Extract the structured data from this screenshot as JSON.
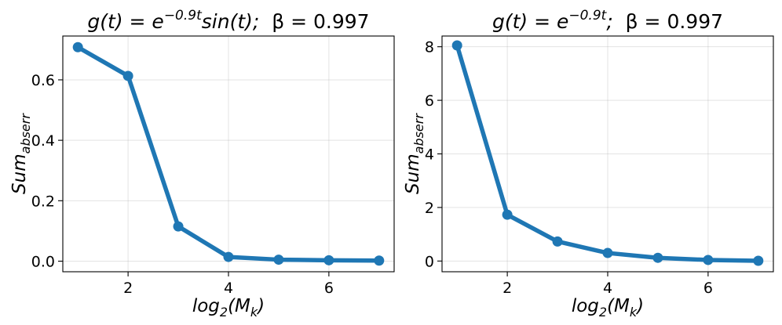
{
  "chart_data": [
    {
      "type": "line",
      "title": {
        "prefix": "g(t) = e",
        "exponent": "−0.9t",
        "suffix": "sin(t);",
        "beta": "β = 0.997"
      },
      "xlabel": {
        "base": "log",
        "sub1": "2",
        "mid": "(M",
        "sub2": "k",
        "end": ")"
      },
      "ylabel": {
        "base": "Sum",
        "sub": "abserr"
      },
      "xlim": [
        0.7,
        7.3
      ],
      "ylim": [
        -0.035,
        0.745
      ],
      "xticks": [
        2,
        4,
        6
      ],
      "xtick_labels": [
        "2",
        "4",
        "6"
      ],
      "yticks": [
        0.0,
        0.2,
        0.4,
        0.6
      ],
      "ytick_labels": [
        "0.0",
        "0.2",
        "0.4",
        "0.6"
      ],
      "grid": true,
      "color": "#1f77b4",
      "x": [
        1,
        2,
        3,
        4,
        5,
        6,
        7
      ],
      "y": [
        0.708,
        0.613,
        0.115,
        0.014,
        0.005,
        0.003,
        0.002
      ]
    },
    {
      "type": "line",
      "title": {
        "prefix": "g(t) = e",
        "exponent": "−0.9t",
        "suffix": ";",
        "beta": "β = 0.997"
      },
      "xlabel": {
        "base": "log",
        "sub1": "2",
        "mid": "(M",
        "sub2": "k",
        "end": ")"
      },
      "ylabel": {
        "base": "Sum",
        "sub": "abserr"
      },
      "xlim": [
        0.7,
        7.3
      ],
      "ylim": [
        -0.4,
        8.4
      ],
      "xticks": [
        2,
        4,
        6
      ],
      "xtick_labels": [
        "2",
        "4",
        "6"
      ],
      "yticks": [
        0,
        2,
        4,
        6,
        8
      ],
      "ytick_labels": [
        "0",
        "2",
        "4",
        "6",
        "8"
      ],
      "grid": true,
      "color": "#1f77b4",
      "x": [
        1,
        2,
        3,
        4,
        5,
        6,
        7
      ],
      "y": [
        8.05,
        1.73,
        0.73,
        0.3,
        0.12,
        0.04,
        0.01
      ]
    }
  ]
}
